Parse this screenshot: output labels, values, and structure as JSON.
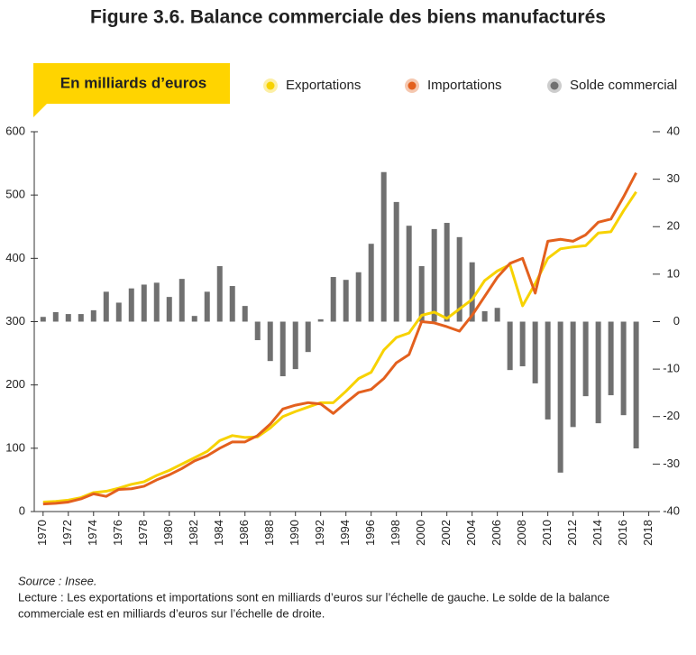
{
  "chart_data": {
    "type": "bar_line",
    "title": "Figure 3.6. Balance commerciale des biens manufacturés",
    "unit_label": "En milliards d’euros",
    "x": [
      1970,
      1971,
      1972,
      1973,
      1974,
      1975,
      1976,
      1977,
      1978,
      1979,
      1980,
      1981,
      1982,
      1983,
      1984,
      1985,
      1986,
      1987,
      1988,
      1989,
      1990,
      1991,
      1992,
      1993,
      1994,
      1995,
      1996,
      1997,
      1998,
      1999,
      2000,
      2001,
      2002,
      2003,
      2004,
      2005,
      2006,
      2007,
      2008,
      2009,
      2010,
      2011,
      2012,
      2013,
      2014,
      2015,
      2016,
      2017
    ],
    "xlim": [
      1969.3,
      2018.6
    ],
    "xticks": [
      1970,
      1972,
      1974,
      1976,
      1978,
      1980,
      1982,
      1984,
      1986,
      1988,
      1990,
      1992,
      1994,
      1996,
      1998,
      2000,
      2002,
      2004,
      2006,
      2008,
      2010,
      2012,
      2014,
      2016,
      2018
    ],
    "ylim": [
      0,
      600
    ],
    "yticks": [
      0,
      100,
      200,
      300,
      400,
      500,
      600
    ],
    "y2lim": [
      -40,
      40
    ],
    "y2ticks": [
      -40,
      -30,
      -20,
      -10,
      0,
      10,
      20,
      30,
      40
    ],
    "series": [
      {
        "name": "Exportations",
        "type": "line",
        "color": "#f7d200",
        "values": [
          15,
          16,
          18,
          22,
          30,
          32,
          37,
          43,
          47,
          57,
          65,
          75,
          85,
          95,
          112,
          120,
          117,
          118,
          132,
          150,
          158,
          165,
          172,
          172,
          190,
          210,
          220,
          255,
          275,
          282,
          310,
          315,
          305,
          320,
          335,
          365,
          380,
          390,
          325,
          360,
          400,
          415,
          418,
          420,
          440,
          442,
          475,
          505
        ]
      },
      {
        "name": "Importations",
        "type": "line",
        "color": "#e3601e",
        "values": [
          12,
          13,
          15,
          20,
          28,
          24,
          35,
          36,
          40,
          50,
          58,
          68,
          80,
          88,
          100,
          110,
          110,
          120,
          138,
          162,
          168,
          172,
          170,
          155,
          172,
          188,
          193,
          210,
          235,
          248,
          300,
          298,
          292,
          285,
          310,
          340,
          370,
          392,
          400,
          345,
          427,
          430,
          427,
          437,
          457,
          462,
          497,
          535
        ]
      },
      {
        "name": "Solde commercial",
        "type": "bar",
        "axis": "y2",
        "color": "#707070",
        "values": [
          1,
          2,
          1.6,
          1.6,
          2.4,
          6.3,
          4,
          7,
          7.8,
          8.2,
          5.2,
          9,
          1.2,
          6.3,
          11.7,
          7.5,
          3.3,
          -3.9,
          -8.3,
          -11.5,
          -10,
          -6.4,
          0.5,
          9.4,
          8.8,
          10.4,
          16.4,
          31.5,
          25.2,
          20.2,
          11.7,
          19.5,
          20.8,
          17.8,
          12.5,
          2.2,
          2.9,
          -10.2,
          -9.4,
          -13,
          -20.6,
          -31.8,
          -22.2,
          -15.7,
          -21.4,
          -15.5,
          -19.7,
          -26.7
        ]
      }
    ],
    "source": "Source : Insee.",
    "note": [
      "Lecture : Les exportations et importations sont en milliards d’euros sur l’échelle de gauche. Le solde de la balance",
      "commerciale est en milliards d’euros sur l’échelle de droite."
    ]
  }
}
